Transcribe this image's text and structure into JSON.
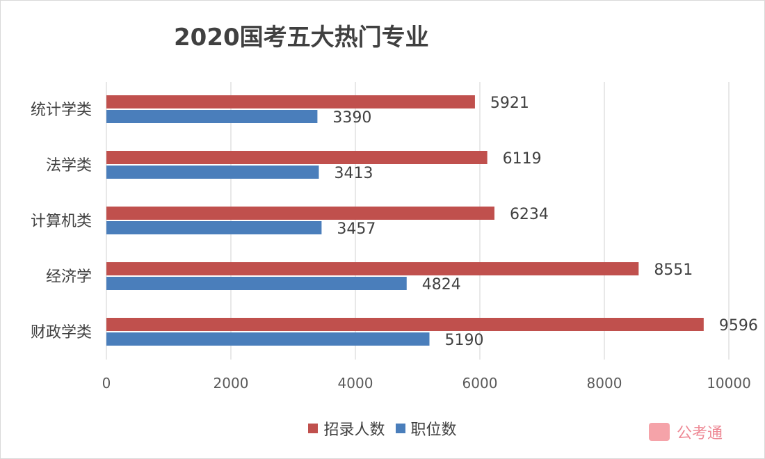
{
  "chart_data": {
    "type": "bar",
    "orientation": "horizontal",
    "title": "2020国考五大热门专业",
    "categories": [
      "统计学类",
      "法学类",
      "计算机类",
      "经济学",
      "财政学类"
    ],
    "series": [
      {
        "name": "招录人数",
        "color": "#c0504d",
        "values": [
          5921,
          6119,
          6234,
          8551,
          9596
        ]
      },
      {
        "name": "职位数",
        "color": "#4a7ebb",
        "values": [
          3390,
          3413,
          3457,
          4824,
          5190
        ]
      }
    ],
    "xlim": [
      0,
      10000
    ],
    "xticks": [
      0,
      2000,
      4000,
      6000,
      8000,
      10000
    ],
    "grid": true,
    "legend": "bottom"
  },
  "watermark": "公考通"
}
